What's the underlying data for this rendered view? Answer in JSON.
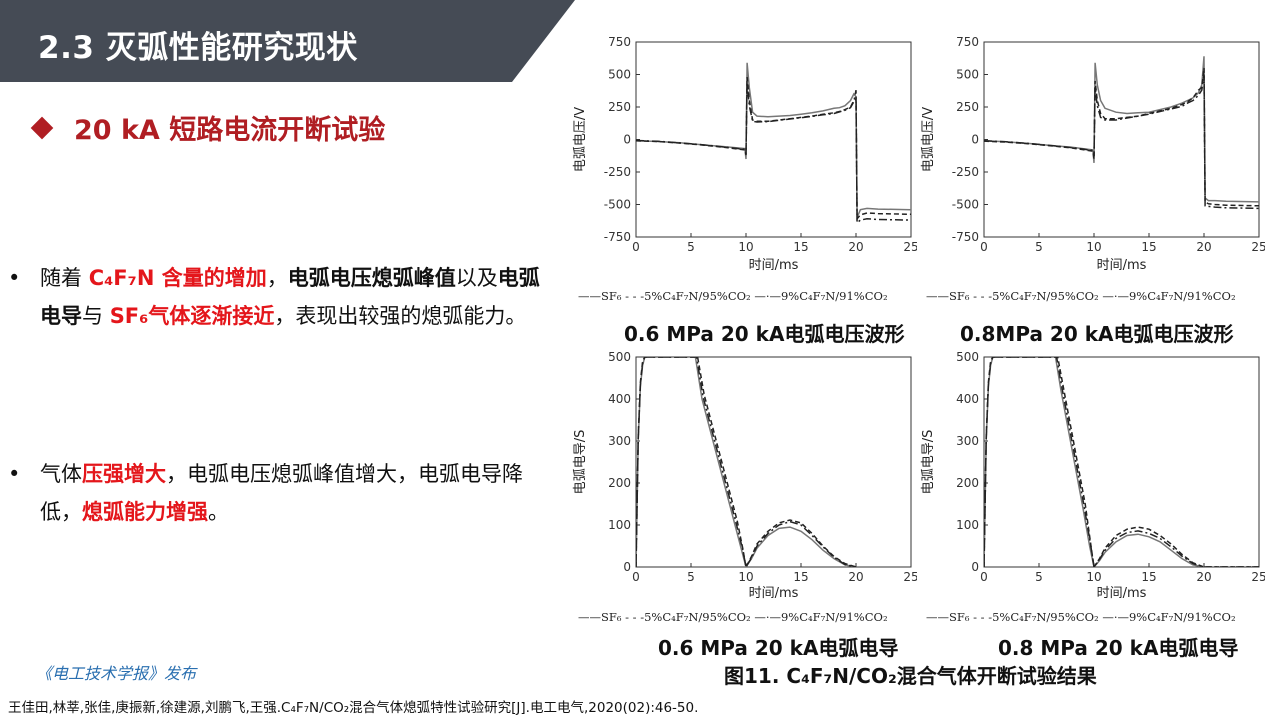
{
  "header": {
    "title": "2.3 灭弧性能研究现状"
  },
  "section": {
    "heading": "20 kA 短路电流开断试验"
  },
  "bullets": [
    {
      "marker": "•",
      "segments": [
        {
          "text": "随着 ",
          "style": "normal"
        },
        {
          "text": "C₄F₇N 含量的增加",
          "style": "red"
        },
        {
          "text": "，",
          "style": "normal"
        },
        {
          "text": "电弧电压熄弧峰值",
          "style": "bold"
        },
        {
          "text": "以及",
          "style": "normal"
        },
        {
          "text": "电弧电导",
          "style": "bold"
        },
        {
          "text": "与  ",
          "style": "normal"
        },
        {
          "text": "SF₆气体逐渐接近",
          "style": "red"
        },
        {
          "text": "，表现出较强的熄弧能力。",
          "style": "normal"
        }
      ]
    },
    {
      "marker": "•",
      "segments": [
        {
          "text": "气体",
          "style": "normal"
        },
        {
          "text": "压强增大",
          "style": "red"
        },
        {
          "text": "，电弧电压熄弧峰值增大，电弧电导降低，",
          "style": "normal"
        },
        {
          "text": "熄弧能力增强",
          "style": "red"
        },
        {
          "text": "。",
          "style": "normal"
        }
      ]
    }
  ],
  "legend": {
    "sf6": "SF₆",
    "mix5": "5%C₄F₇N/95%CO₂",
    "mix9": "9%C₄F₇N/91%CO₂"
  },
  "figure": {
    "title": "图11. C₄F₇N/CO₂混合气体开断试验结果",
    "journal": "《电工技术学报》发布",
    "reference": "王佳田,林莘,张佳,庚振新,徐建源,刘鹏飞,王强.C₄F₇N/CO₂混合气体熄弧特性试验研究[J].电工电气,2020(02):46-50."
  },
  "chart_data": [
    {
      "type": "line",
      "caption": "0.6 MPa 20 kA电弧电压波形",
      "xlabel": "时间/ms",
      "ylabel": "电弧电压/V",
      "xlim": [
        0,
        25
      ],
      "ylim": [
        -750,
        750
      ],
      "xticks": [
        0,
        5,
        10,
        15,
        20,
        25
      ],
      "yticks": [
        -750,
        -500,
        -250,
        0,
        250,
        500,
        750
      ],
      "series": [
        {
          "name": "SF₆",
          "style": "solid",
          "color": "#777777",
          "x": [
            0,
            2,
            4,
            6,
            8,
            9.9,
            10,
            10.1,
            10.3,
            10.6,
            11,
            12,
            13,
            14,
            15,
            16,
            17,
            18,
            18.5,
            19,
            19.5,
            19.8,
            20,
            20.1,
            20.4,
            21,
            22,
            25
          ],
          "y": [
            -10,
            -15,
            -25,
            -40,
            -55,
            -70,
            -150,
            590,
            400,
            210,
            180,
            175,
            180,
            185,
            195,
            205,
            220,
            240,
            245,
            260,
            300,
            350,
            330,
            -600,
            -540,
            -530,
            -535,
            -540
          ]
        },
        {
          "name": "5%C₄F₇N/95%CO₂",
          "style": "dashed",
          "color": "#222222",
          "x": [
            0,
            2,
            4,
            6,
            8,
            9.9,
            10,
            10.1,
            10.3,
            10.6,
            11,
            12,
            13,
            14,
            15,
            16,
            17,
            18,
            18.5,
            19,
            19.5,
            19.8,
            20,
            20.1,
            20.4,
            21,
            22,
            25
          ],
          "y": [
            -10,
            -15,
            -28,
            -42,
            -60,
            -80,
            -120,
            480,
            300,
            150,
            140,
            140,
            150,
            160,
            170,
            180,
            195,
            205,
            215,
            230,
            250,
            300,
            310,
            -610,
            -580,
            -565,
            -570,
            -575
          ]
        },
        {
          "name": "9%C₄F₇N/91%CO₂",
          "style": "dashdot",
          "color": "#222222",
          "x": [
            0,
            2,
            4,
            6,
            8,
            9.9,
            10,
            10.1,
            10.3,
            10.6,
            11,
            12,
            13,
            14,
            15,
            16,
            17,
            18,
            18.5,
            19,
            19.5,
            19.8,
            20,
            20.1,
            20.4,
            21,
            22,
            25
          ],
          "y": [
            -8,
            -14,
            -26,
            -40,
            -58,
            -75,
            -110,
            430,
            260,
            140,
            135,
            138,
            148,
            158,
            168,
            178,
            190,
            200,
            212,
            225,
            245,
            290,
            380,
            -640,
            -620,
            -610,
            -615,
            -620
          ]
        }
      ]
    },
    {
      "type": "line",
      "caption": "0.8MPa 20 kA电弧电压波形",
      "xlabel": "时间/ms",
      "ylabel": "电弧电压/V",
      "xlim": [
        0,
        25
      ],
      "ylim": [
        -750,
        750
      ],
      "xticks": [
        0,
        5,
        10,
        15,
        20,
        25
      ],
      "yticks": [
        -750,
        -500,
        -250,
        0,
        250,
        500,
        750
      ],
      "series": [
        {
          "name": "SF₆",
          "style": "solid",
          "color": "#777777",
          "x": [
            0,
            2,
            4,
            6,
            8,
            9.9,
            10,
            10.1,
            10.3,
            10.6,
            11,
            12,
            13,
            14,
            15,
            16,
            17,
            18,
            18.5,
            19,
            19.5,
            19.8,
            20,
            20.1,
            20.4,
            21,
            22,
            25
          ],
          "y": [
            -10,
            -18,
            -30,
            -45,
            -60,
            -80,
            -180,
            590,
            420,
            300,
            240,
            210,
            200,
            205,
            210,
            230,
            250,
            280,
            300,
            320,
            360,
            420,
            640,
            -450,
            -470,
            -470,
            -475,
            -480
          ]
        },
        {
          "name": "5%C₄F₇N/95%CO₂",
          "style": "dashed",
          "color": "#222222",
          "x": [
            0,
            2,
            4,
            6,
            8,
            9.9,
            10,
            10.1,
            10.3,
            10.6,
            11,
            12,
            13,
            14,
            15,
            16,
            17,
            18,
            18.5,
            19,
            19.5,
            19.8,
            20,
            20.1,
            20.4,
            21,
            22,
            25
          ],
          "y": [
            -12,
            -20,
            -32,
            -48,
            -65,
            -90,
            -150,
            450,
            300,
            200,
            160,
            160,
            170,
            180,
            200,
            220,
            240,
            270,
            290,
            320,
            380,
            400,
            550,
            -480,
            -495,
            -500,
            -505,
            -510
          ]
        },
        {
          "name": "9%C₄F₇N/91%CO₂",
          "style": "dashdot",
          "color": "#222222",
          "x": [
            0,
            2,
            4,
            6,
            8,
            9.9,
            10,
            10.1,
            10.3,
            10.6,
            11,
            12,
            13,
            14,
            15,
            16,
            17,
            18,
            18.5,
            19,
            19.5,
            19.8,
            20,
            20.1,
            20.4,
            21,
            22,
            25
          ],
          "y": [
            -10,
            -18,
            -30,
            -46,
            -62,
            -85,
            -130,
            400,
            260,
            170,
            150,
            150,
            165,
            180,
            195,
            215,
            235,
            255,
            280,
            300,
            340,
            380,
            500,
            -510,
            -515,
            -520,
            -525,
            -530
          ]
        }
      ]
    },
    {
      "type": "line",
      "caption": "0.6 MPa 20 kA电弧电导",
      "xlabel": "时间/ms",
      "ylabel": "电弧电导/S",
      "xlim": [
        0,
        25
      ],
      "ylim": [
        0,
        500
      ],
      "xticks": [
        0,
        5,
        10,
        15,
        20,
        25
      ],
      "yticks": [
        0,
        100,
        200,
        300,
        400,
        500
      ],
      "series": [
        {
          "name": "SF₆",
          "style": "solid",
          "color": "#777777",
          "x": [
            0,
            0.2,
            0.4,
            0.6,
            0.8,
            5.4,
            6,
            7,
            8,
            9,
            9.6,
            10,
            10.5,
            11,
            12,
            13,
            14,
            15,
            16,
            17,
            18,
            19,
            20
          ],
          "y": [
            0,
            300,
            430,
            480,
            500,
            500,
            400,
            300,
            200,
            100,
            40,
            0,
            20,
            45,
            75,
            92,
            95,
            85,
            65,
            40,
            20,
            5,
            0
          ]
        },
        {
          "name": "5%C₄F₇N/95%CO₂",
          "style": "dashed",
          "color": "#222222",
          "x": [
            0,
            0.2,
            0.4,
            0.6,
            0.8,
            5.6,
            6.2,
            7.2,
            8.2,
            9.2,
            9.7,
            10,
            10.5,
            11,
            12,
            13,
            14,
            15,
            16,
            17,
            18,
            19,
            20
          ],
          "y": [
            0,
            310,
            440,
            490,
            500,
            500,
            410,
            310,
            210,
            110,
            45,
            0,
            25,
            55,
            85,
            105,
            112,
            105,
            80,
            50,
            25,
            8,
            0
          ]
        },
        {
          "name": "9%C₄F₇N/91%CO₂",
          "style": "dashdot",
          "color": "#222222",
          "x": [
            0,
            0.2,
            0.4,
            0.6,
            0.8,
            5.5,
            6.1,
            7.1,
            8.1,
            9.1,
            9.7,
            10,
            10.5,
            11,
            12,
            13,
            14,
            15,
            16,
            17,
            18,
            19,
            20
          ],
          "y": [
            0,
            305,
            435,
            485,
            500,
            500,
            405,
            305,
            205,
            105,
            42,
            0,
            22,
            50,
            80,
            100,
            108,
            100,
            75,
            48,
            23,
            6,
            0
          ]
        }
      ]
    },
    {
      "type": "line",
      "caption": "0.8 MPa 20 kA电弧电导",
      "xlabel": "时间/ms",
      "ylabel": "电弧电导/S",
      "xlim": [
        0,
        25
      ],
      "ylim": [
        0,
        500
      ],
      "xticks": [
        0,
        5,
        10,
        15,
        20,
        25
      ],
      "yticks": [
        0,
        100,
        200,
        300,
        400,
        500
      ],
      "series": [
        {
          "name": "SF₆",
          "style": "solid",
          "color": "#777777",
          "x": [
            0,
            0.2,
            0.4,
            0.6,
            0.8,
            6.5,
            7,
            8,
            9,
            9.6,
            10,
            10.5,
            11,
            12,
            13,
            14,
            15,
            16,
            17,
            18,
            19,
            20,
            25
          ],
          "y": [
            0,
            300,
            430,
            480,
            500,
            500,
            420,
            280,
            140,
            50,
            0,
            15,
            35,
            60,
            75,
            78,
            72,
            60,
            40,
            20,
            5,
            0,
            0
          ]
        },
        {
          "name": "5%C₄F₇N/95%CO₂",
          "style": "dashed",
          "color": "#222222",
          "x": [
            0,
            0.2,
            0.4,
            0.6,
            0.8,
            6.7,
            7.2,
            8.2,
            9.2,
            9.7,
            10,
            10.5,
            11,
            12,
            13,
            14,
            15,
            16,
            17,
            18,
            19,
            20,
            25
          ],
          "y": [
            0,
            310,
            440,
            490,
            500,
            500,
            430,
            290,
            150,
            55,
            0,
            20,
            45,
            75,
            90,
            95,
            90,
            75,
            55,
            30,
            10,
            0,
            0
          ]
        },
        {
          "name": "9%C₄F₇N/91%CO₂",
          "style": "dashdot",
          "color": "#222222",
          "x": [
            0,
            0.2,
            0.4,
            0.6,
            0.8,
            6.6,
            7.1,
            8.1,
            9.1,
            9.7,
            10,
            10.5,
            11,
            12,
            13,
            14,
            15,
            16,
            17,
            18,
            19,
            20,
            25
          ],
          "y": [
            0,
            305,
            435,
            485,
            500,
            500,
            425,
            285,
            145,
            52,
            0,
            18,
            40,
            68,
            82,
            86,
            80,
            68,
            48,
            26,
            8,
            0,
            0
          ]
        }
      ]
    }
  ]
}
